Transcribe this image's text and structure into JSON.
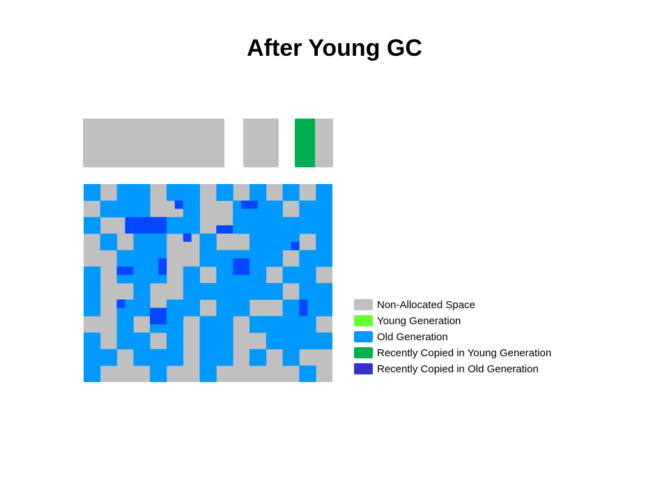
{
  "title": "After Young GC",
  "colors": {
    "non_allocated": "#c0c0c0",
    "young": "#66ff33",
    "old": "#0099ff",
    "copied_young": "#00b050",
    "copied_old": "#3333cc",
    "old_recent_dark": "#0047ff"
  },
  "generations": [
    {
      "id": "eden",
      "fill": "non_allocated"
    },
    {
      "id": "survivor-0",
      "fill": "non_allocated"
    },
    {
      "id": "survivor-1",
      "segments": [
        {
          "fill": "copied_young",
          "fraction": 0.53
        },
        {
          "fill": "non_allocated",
          "fraction": 0.47
        }
      ]
    }
  ],
  "old_generation_grid": {
    "rows": 12,
    "cols": 15,
    "cell_legend": {
      ".": "non_allocated",
      "o": "old",
      "d": "old_recent_dark"
    },
    "cells": [
      "o.oo.oo.o.o.o.o",
      ".ooo..o..ooo.oo",
      "o..ddoo..oooooo",
      ".o.oo..o..ooo.o",
      "..ooo..ooooo.oo",
      "o.ooo.o.ooo.oo.",
      "o..o..oooooo.oo",
      "o.oo.oo.oo..ooo",
      "..o.oo.oo.oooo.",
      "o.oo.o.oo..oooo",
      "oo.ooo.oo.o.o..",
      "o...o..o.....o."
    ],
    "overlays": [
      {
        "row": 1,
        "col": 5.5,
        "w": 0.5,
        "h": 0.5,
        "fill": "old_recent_dark"
      },
      {
        "row": 1,
        "col": 9.5,
        "w": 1,
        "h": 0.5,
        "fill": "old_recent_dark"
      },
      {
        "row": 2,
        "col": 2.5,
        "w": 0.5,
        "h": 1,
        "fill": "old_recent_dark"
      },
      {
        "row": 2.5,
        "col": 8,
        "w": 1,
        "h": 0.5,
        "fill": "old_recent_dark"
      },
      {
        "row": 3,
        "col": 6,
        "w": 0.5,
        "h": 0.5,
        "fill": "old_recent_dark"
      },
      {
        "row": 3.5,
        "col": 12.5,
        "w": 0.5,
        "h": 0.5,
        "fill": "old_recent_dark"
      },
      {
        "row": 4.5,
        "col": 4.5,
        "w": 0.5,
        "h": 1,
        "fill": "old_recent_dark"
      },
      {
        "row": 4.5,
        "col": 9,
        "w": 1,
        "h": 1,
        "fill": "old_recent_dark"
      },
      {
        "row": 5,
        "col": 2,
        "w": 1,
        "h": 0.5,
        "fill": "old_recent_dark"
      },
      {
        "row": 7,
        "col": 2,
        "w": 0.5,
        "h": 0.5,
        "fill": "old_recent_dark"
      },
      {
        "row": 7.5,
        "col": 4,
        "w": 1,
        "h": 1,
        "fill": "old_recent_dark"
      },
      {
        "row": 7,
        "col": 13,
        "w": 0.5,
        "h": 1,
        "fill": "old_recent_dark"
      }
    ]
  },
  "legend": [
    {
      "label": "Non-Allocated Space",
      "fill": "non_allocated"
    },
    {
      "label": "Young Generation",
      "fill": "young"
    },
    {
      "label": "Old Generation",
      "fill": "old"
    },
    {
      "label": "Recently Copied in Young Generation",
      "fill": "copied_young"
    },
    {
      "label": "Recently Copied in Old Generation",
      "fill": "copied_old"
    }
  ]
}
